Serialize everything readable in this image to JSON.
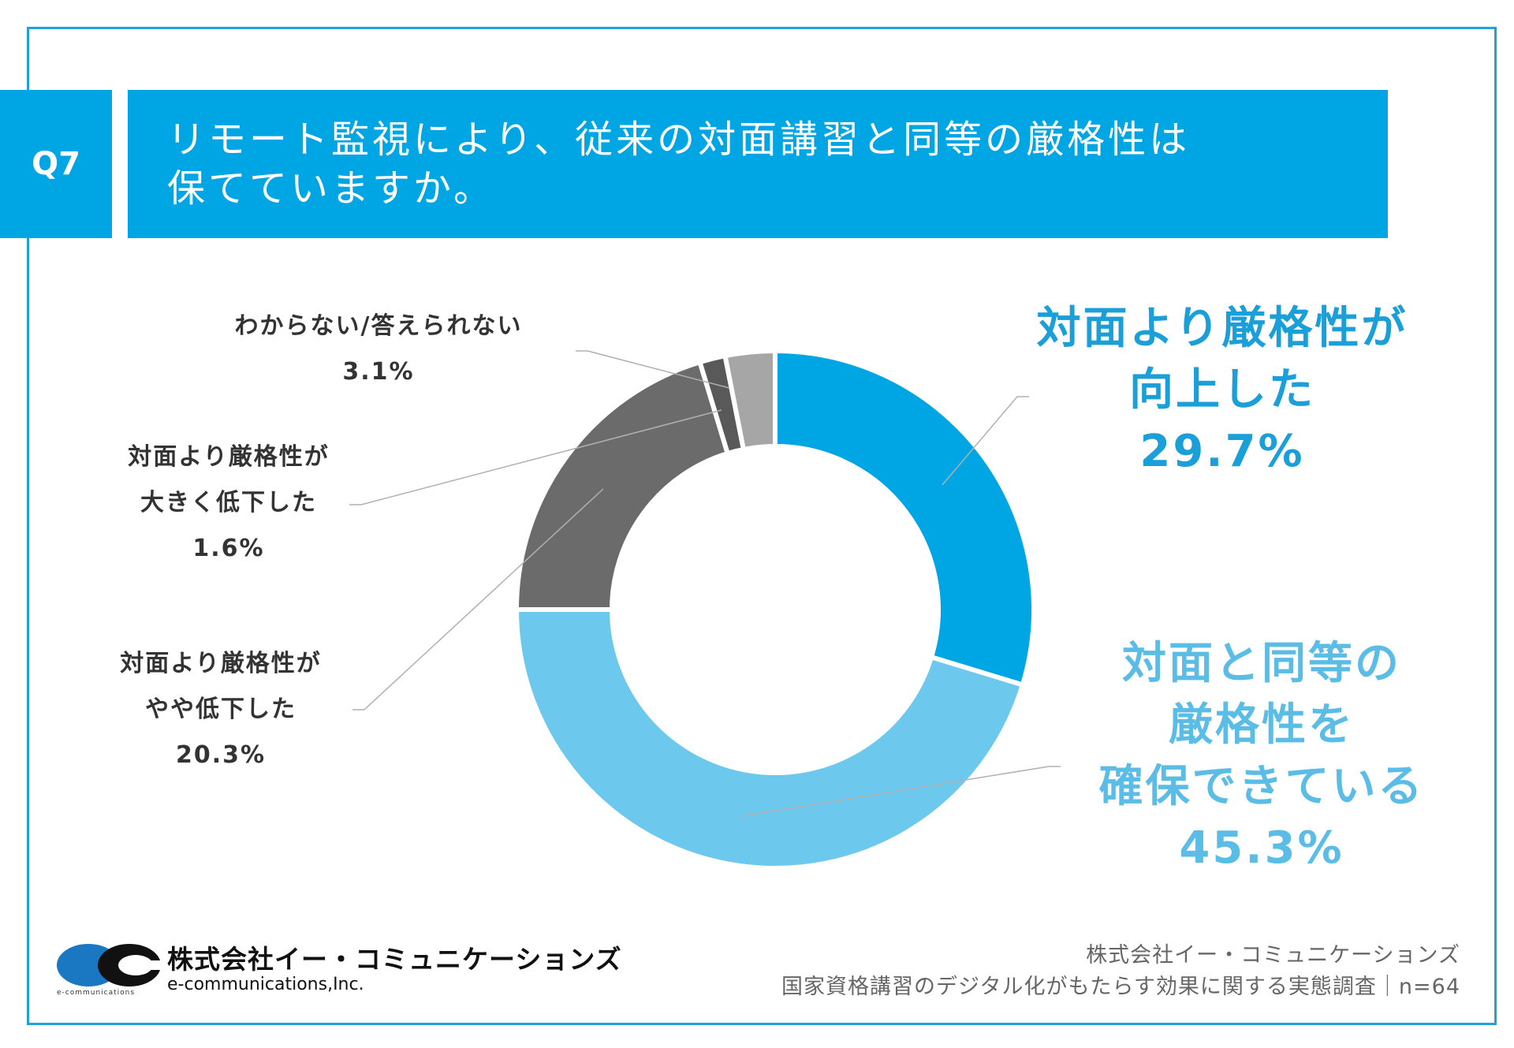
{
  "question": {
    "number": "Q7",
    "line1": "リモート監視により、従来の対面講習と同等の厳格性は",
    "line2": "保てていますか。"
  },
  "chart_data": {
    "type": "pie",
    "donut": true,
    "slices": [
      {
        "name": "対面より厳格性が向上した",
        "value": 29.7,
        "label": "29.7%",
        "color": "#00a5e3"
      },
      {
        "name": "対面と同等の厳格性を確保できている",
        "value": 45.3,
        "label": "45.3%",
        "color": "#6dc8ee"
      },
      {
        "name": "対面より厳格性がやや低下した",
        "value": 20.3,
        "label": "20.3%",
        "color": "#6b6b6b"
      },
      {
        "name": "対面より厳格性が大きく低下した",
        "value": 1.6,
        "label": "1.6%",
        "color": "#595959"
      },
      {
        "name": "わからない/答えられない",
        "value": 3.1,
        "label": "3.1%",
        "color": "#a6a6a6"
      }
    ]
  },
  "labels": {
    "up": {
      "line1": "対面より厳格性が",
      "line2": "向上した",
      "pct": "29.7%",
      "color": "#1a9fd8"
    },
    "same": {
      "line1": "対面と同等の",
      "line2": "厳格性を",
      "line3": "確保できている",
      "pct": "45.3%",
      "color": "#5bbde6"
    },
    "slight": {
      "line1": "対面より厳格性が",
      "line2": "やや低下した",
      "pct": "20.3%"
    },
    "large": {
      "line1": "対面より厳格性が",
      "line2": "大きく低下した",
      "pct": "1.6%"
    },
    "unknown": {
      "line1": "わからない/答えられない",
      "pct": "3.1%"
    }
  },
  "footer": {
    "logo_jp": "株式会社イー・コミュニケーションズ",
    "logo_en": "e-communications,Inc.",
    "logo_mini": "e-communications",
    "company": "株式会社イー・コミュニケーションズ",
    "survey": "国家資格講習のデジタル化がもたらす効果に関する実態調査｜n=64"
  },
  "colors": {
    "accent": "#00a5e3",
    "frame": "#1ea1dc"
  }
}
